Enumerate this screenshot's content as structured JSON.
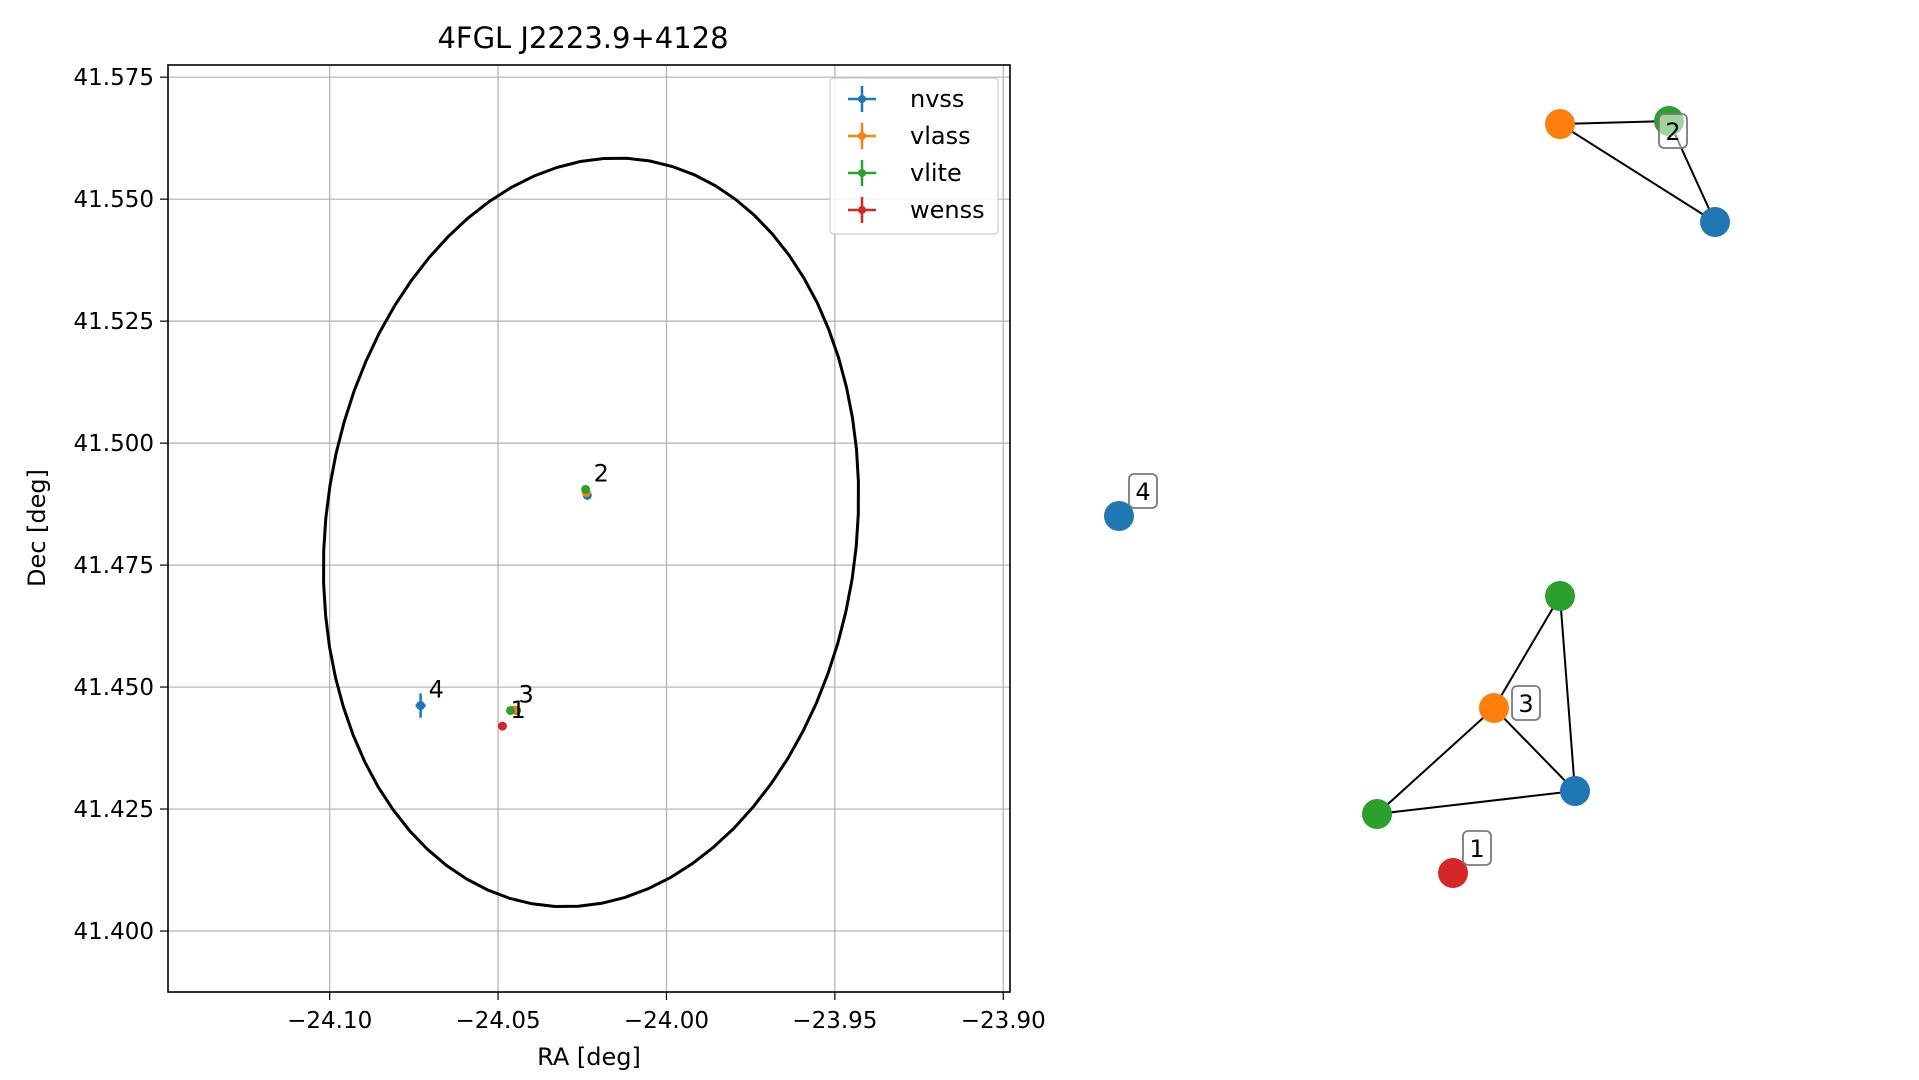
{
  "chart_data": [
    {
      "type": "scatter",
      "title": "4FGL J2223.9+4128",
      "xlabel": "RA [deg]",
      "ylabel": "Dec [deg]",
      "xlim": [
        -24.148,
        -23.898
      ],
      "ylim": [
        41.3875,
        41.5775
      ],
      "xticks": [
        -24.1,
        -24.05,
        -24.0,
        -23.95,
        -23.9
      ],
      "xtick_labels": [
        "−24.10",
        "−24.05",
        "−24.00",
        "−23.95",
        "−23.90"
      ],
      "yticks": [
        41.4,
        41.425,
        41.45,
        41.475,
        41.5,
        41.525,
        41.55,
        41.575
      ],
      "ytick_labels": [
        "41.400",
        "41.425",
        "41.450",
        "41.475",
        "41.500",
        "41.525",
        "41.550",
        "41.575"
      ],
      "grid": true,
      "legend_position": "top-right",
      "series": [
        {
          "name": "nvss",
          "color": "#1f77b4",
          "points": [
            {
              "x": -24.0235,
              "y": 41.4893
            },
            {
              "x": -24.0445,
              "y": 41.4452
            },
            {
              "x": -24.073,
              "y": 41.4462,
              "xerr": 0.0015,
              "yerr": 0.0025
            }
          ]
        },
        {
          "name": "vlass",
          "color": "#ff7f0e",
          "points": [
            {
              "x": -24.0238,
              "y": 41.4899
            },
            {
              "x": -24.0452,
              "y": 41.4453
            }
          ]
        },
        {
          "name": "vlite",
          "color": "#2ca02c",
          "points": [
            {
              "x": -24.024,
              "y": 41.4905
            },
            {
              "x": -24.0463,
              "y": 41.4452
            }
          ]
        },
        {
          "name": "wenss",
          "color": "#d62728",
          "points": [
            {
              "x": -24.0487,
              "y": 41.442
            }
          ]
        }
      ],
      "source_labels": [
        {
          "text": "2",
          "x": -24.024,
          "y": 41.4905
        },
        {
          "text": "3",
          "x": -24.0463,
          "y": 41.4452
        },
        {
          "text": "1",
          "x": -24.0487,
          "y": 41.442
        },
        {
          "text": "4",
          "x": -24.073,
          "y": 41.4462
        }
      ],
      "error_ellipse": {
        "center_x": -24.0224,
        "center_y": 41.4817,
        "semi_major": 0.082,
        "semi_minor": 0.074,
        "angle_deg": 35,
        "color": "#000000"
      }
    },
    {
      "type": "network",
      "nodes": [
        {
          "id": "g2_vlass",
          "catalog": "vlass",
          "group": "2"
        },
        {
          "id": "g2_vlite",
          "catalog": "vlite",
          "group": "2"
        },
        {
          "id": "g2_nvss",
          "catalog": "nvss",
          "group": "2"
        },
        {
          "id": "g4_nvss",
          "catalog": "nvss",
          "group": "4"
        },
        {
          "id": "g3_vlite_a",
          "catalog": "vlite",
          "group": "3"
        },
        {
          "id": "g3_vlass",
          "catalog": "vlass",
          "group": "3"
        },
        {
          "id": "g3_nvss",
          "catalog": "nvss",
          "group": "3"
        },
        {
          "id": "g3_vlite_b",
          "catalog": "vlite",
          "group": "3"
        },
        {
          "id": "g1_wenss",
          "catalog": "wenss",
          "group": "1"
        }
      ],
      "edges": [
        [
          "g2_vlass",
          "g2_vlite"
        ],
        [
          "g2_vlite",
          "g2_nvss"
        ],
        [
          "g2_vlass",
          "g2_nvss"
        ],
        [
          "g3_vlite_a",
          "g3_vlass"
        ],
        [
          "g3_vlite_a",
          "g3_nvss"
        ],
        [
          "g3_vlass",
          "g3_nvss"
        ],
        [
          "g3_vlass",
          "g3_vlite_b"
        ],
        [
          "g3_vlite_b",
          "g3_nvss"
        ]
      ],
      "group_labels": [
        "2",
        "4",
        "3",
        "1"
      ]
    }
  ],
  "catalog_colors": {
    "nvss": "#1f77b4",
    "vlass": "#ff7f0e",
    "vlite": "#2ca02c",
    "wenss": "#d62728"
  }
}
